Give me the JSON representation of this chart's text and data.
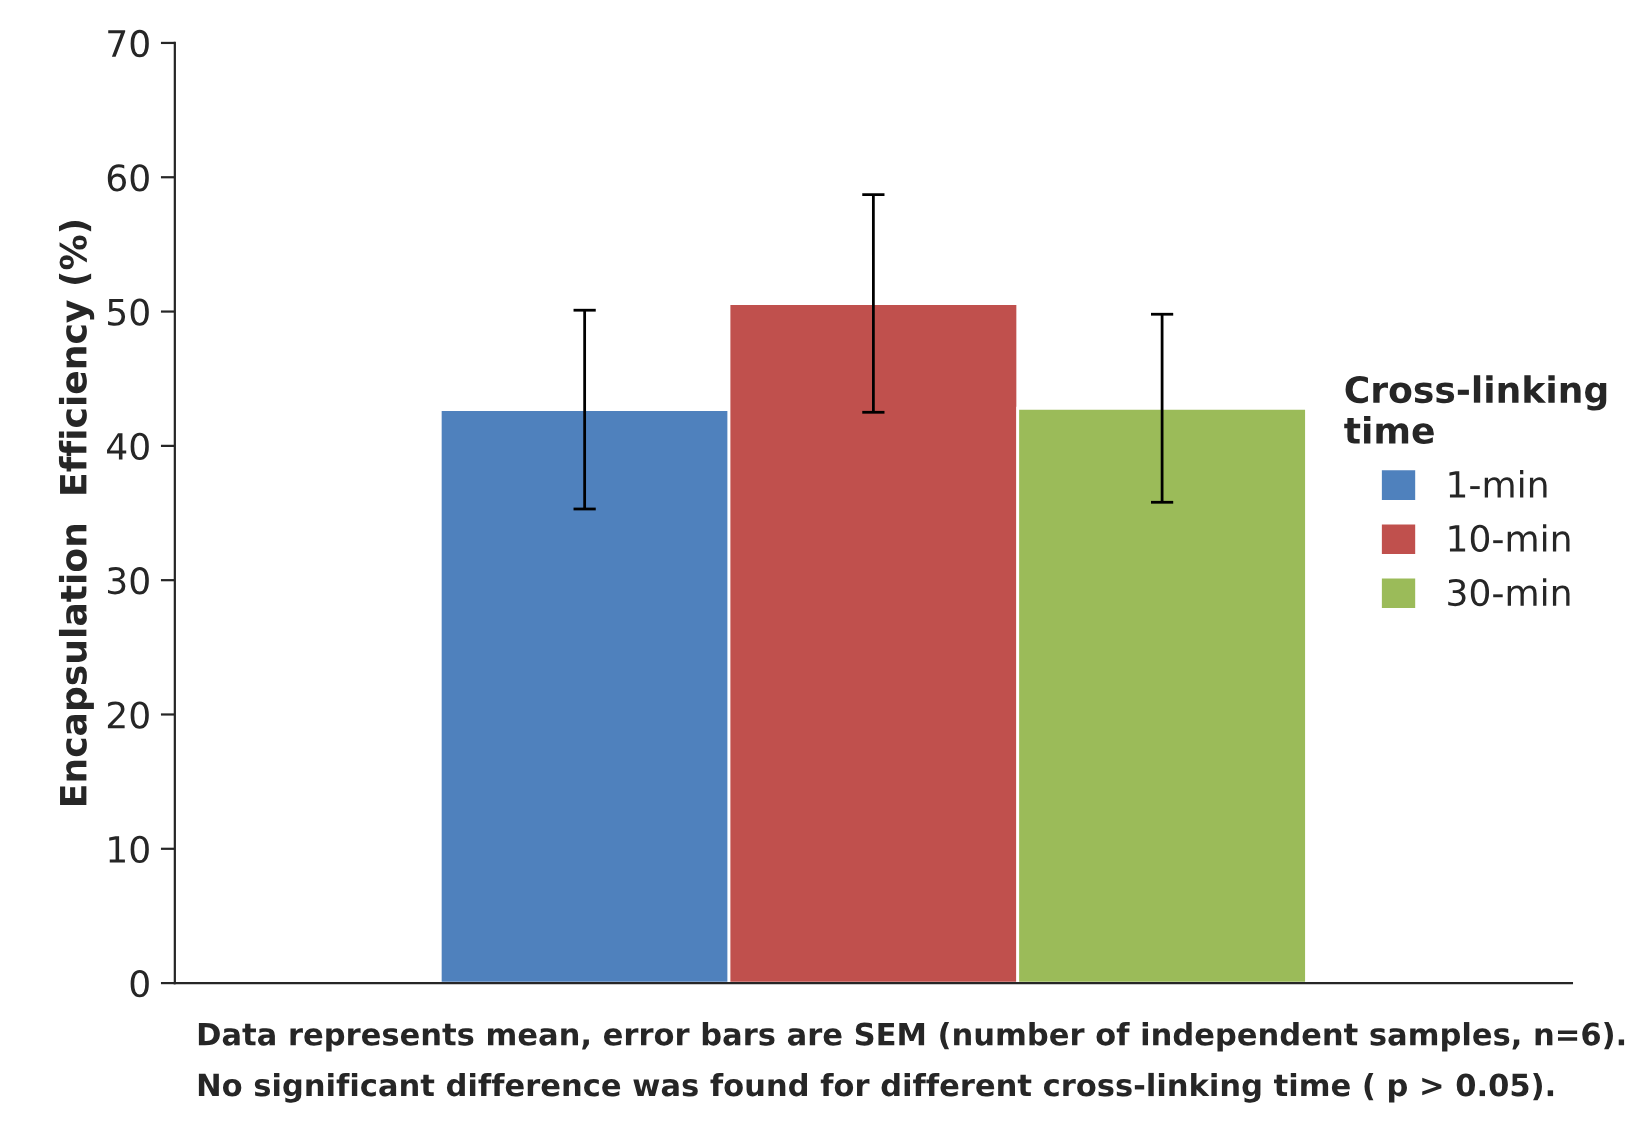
{
  "chart_data": {
    "type": "bar",
    "ylabel": "Encapsulation  Efficiency (%)",
    "legend_title": "Cross-linking\ntime",
    "categories": [
      null
    ],
    "series": [
      {
        "name": "1-min",
        "color": "#4f81bd",
        "values": [
          42.7
        ],
        "errors": [
          7.4
        ]
      },
      {
        "name": "10-min",
        "color": "#c0504d",
        "values": [
          50.6
        ],
        "errors": [
          8.1
        ]
      },
      {
        "name": "30-min",
        "color": "#9bbb59",
        "values": [
          42.8
        ],
        "errors": [
          7.0
        ]
      }
    ],
    "ylim": [
      0,
      70
    ],
    "yticks": [
      0,
      10,
      20,
      30,
      40,
      50,
      60,
      70
    ],
    "grid": false,
    "legend": "right",
    "annotations": [
      "Data represents mean, error bars are SEM (number of independent samples, n=6).",
      "No significant difference was found for different cross-linking time ( p > 0.05)."
    ]
  }
}
